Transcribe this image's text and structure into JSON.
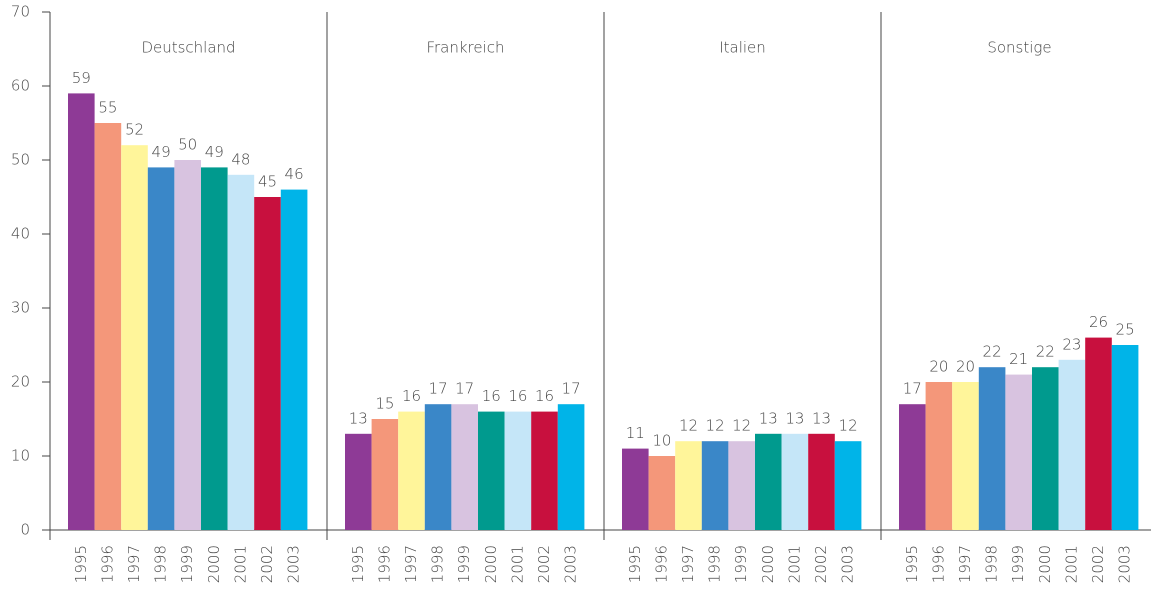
{
  "chart_data": {
    "type": "bar",
    "categories": [
      "1995",
      "1996",
      "1997",
      "1998",
      "1999",
      "2000",
      "2001",
      "2002",
      "2003"
    ],
    "colors": [
      "#8e3a96",
      "#f4977a",
      "#fff59a",
      "#3a87c8",
      "#d8c3e0",
      "#009a8e",
      "#c5e6f8",
      "#c8103e",
      "#00b4e8"
    ],
    "series": [
      {
        "name": "Deutschland",
        "values": [
          59,
          55,
          52,
          49,
          50,
          49,
          48,
          45,
          46
        ]
      },
      {
        "name": "Frankreich",
        "values": [
          13,
          15,
          16,
          17,
          17,
          16,
          16,
          16,
          17
        ]
      },
      {
        "name": "Italien",
        "values": [
          11,
          10,
          12,
          12,
          12,
          13,
          13,
          13,
          12
        ]
      },
      {
        "name": "Sonstige",
        "values": [
          17,
          20,
          20,
          22,
          21,
          22,
          23,
          26,
          25
        ]
      }
    ],
    "ylim": [
      0,
      70
    ],
    "yticks": [
      0,
      10,
      20,
      30,
      40,
      50,
      60,
      70
    ]
  }
}
